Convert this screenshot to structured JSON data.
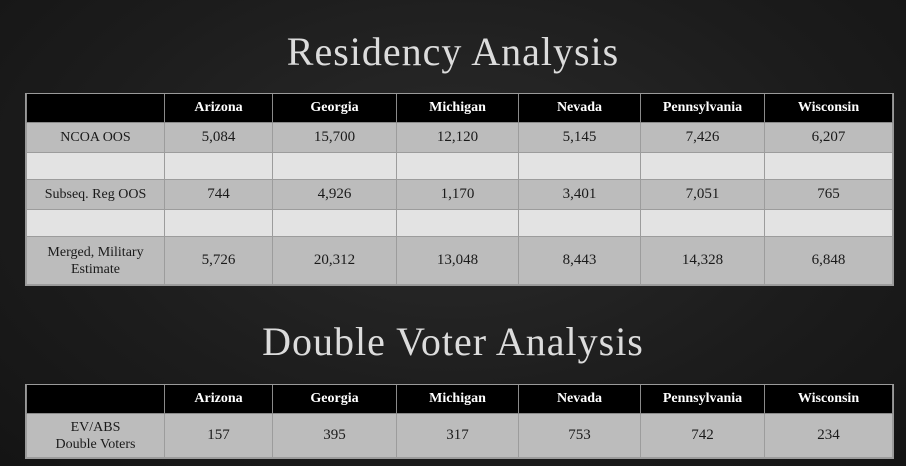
{
  "residency": {
    "title": "Residency Analysis",
    "columns": [
      "",
      "Arizona",
      "Georgia",
      "Michigan",
      "Nevada",
      "Pennsylvania",
      "Wisconsin"
    ],
    "rows": [
      {
        "label": "NCOA OOS",
        "values": [
          "5,084",
          "15,700",
          "12,120",
          "5,145",
          "7,426",
          "6,207"
        ]
      },
      {
        "label": "Subseq. Reg OOS",
        "values": [
          "744",
          "4,926",
          "1,170",
          "3,401",
          "7,051",
          "765"
        ]
      },
      {
        "label_line1": "Merged, Military",
        "label_line2": "Estimate",
        "values": [
          "5,726",
          "20,312",
          "13,048",
          "8,443",
          "14,328",
          "6,848"
        ]
      }
    ]
  },
  "double_voter": {
    "title": "Double Voter Analysis",
    "columns": [
      "",
      "Arizona",
      "Georgia",
      "Michigan",
      "Nevada",
      "Pennsylvania",
      "Wisconsin"
    ],
    "rows": [
      {
        "label_line1": "EV/ABS",
        "label_line2": "Double Voters",
        "values": [
          "157",
          "395",
          "317",
          "753",
          "742",
          "234"
        ]
      }
    ]
  }
}
